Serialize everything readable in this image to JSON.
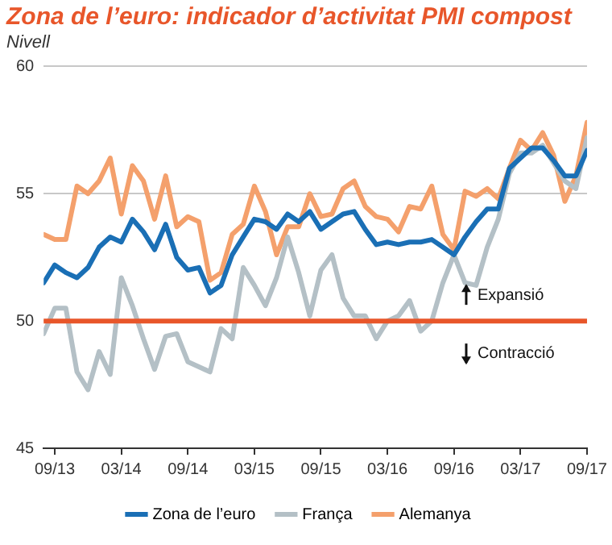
{
  "chart_data": {
    "type": "line",
    "title": "Zona de l’euro: indicador d’activitat PMI compost",
    "subtitle": "Nivell",
    "x": [
      "2013-08",
      "2013-09",
      "2013-10",
      "2013-11",
      "2013-12",
      "2014-01",
      "2014-02",
      "2014-03",
      "2014-04",
      "2014-05",
      "2014-06",
      "2014-07",
      "2014-08",
      "2014-09",
      "2014-10",
      "2014-11",
      "2014-12",
      "2015-01",
      "2015-02",
      "2015-03",
      "2015-04",
      "2015-05",
      "2015-06",
      "2015-07",
      "2015-08",
      "2015-09",
      "2015-10",
      "2015-11",
      "2015-12",
      "2016-01",
      "2016-02",
      "2016-03",
      "2016-04",
      "2016-05",
      "2016-06",
      "2016-07",
      "2016-08",
      "2016-09",
      "2016-10",
      "2016-11",
      "2016-12",
      "2017-01",
      "2017-02",
      "2017-03",
      "2017-04",
      "2017-05",
      "2017-06",
      "2017-07",
      "2017-08",
      "2017-09"
    ],
    "series": [
      {
        "name": "Zona de l’euro",
        "color": "#1a6fb5",
        "values": [
          51.5,
          52.2,
          51.9,
          51.7,
          52.1,
          52.9,
          53.3,
          53.1,
          54.0,
          53.5,
          52.8,
          53.8,
          52.5,
          52.0,
          52.1,
          51.1,
          51.4,
          52.6,
          53.3,
          54.0,
          53.9,
          53.6,
          54.2,
          53.9,
          54.3,
          53.6,
          53.9,
          54.2,
          54.3,
          53.6,
          53.0,
          53.1,
          53.0,
          53.1,
          53.1,
          53.2,
          52.9,
          52.6,
          53.3,
          53.9,
          54.4,
          54.4,
          56.0,
          56.4,
          56.8,
          56.8,
          56.3,
          55.7,
          55.7,
          56.7
        ]
      },
      {
        "name": "França",
        "color": "#b4c0c6",
        "values": [
          49.5,
          50.5,
          50.5,
          48.0,
          47.3,
          48.8,
          47.9,
          51.7,
          50.6,
          49.3,
          48.1,
          49.4,
          49.5,
          48.4,
          48.2,
          48.0,
          49.7,
          49.3,
          52.1,
          51.4,
          50.6,
          51.7,
          53.3,
          51.9,
          50.2,
          52.0,
          52.6,
          50.9,
          50.2,
          50.2,
          49.3,
          50.0,
          50.2,
          50.8,
          49.6,
          50.0,
          51.5,
          52.6,
          51.5,
          51.4,
          52.9,
          54.0,
          55.8,
          56.6,
          56.6,
          56.9,
          56.2,
          55.5,
          55.2,
          57.2
        ]
      },
      {
        "name": "Alemanya",
        "color": "#f4a06c",
        "values": [
          53.4,
          53.2,
          53.2,
          55.3,
          55.0,
          55.5,
          56.4,
          54.2,
          56.1,
          55.5,
          54.0,
          55.7,
          53.7,
          54.1,
          53.9,
          51.6,
          51.9,
          53.4,
          53.8,
          55.3,
          54.3,
          52.6,
          53.7,
          53.7,
          55.0,
          54.1,
          54.2,
          55.2,
          55.5,
          54.5,
          54.1,
          54.0,
          53.5,
          54.5,
          54.4,
          55.3,
          53.4,
          52.8,
          55.1,
          54.9,
          55.2,
          54.8,
          56.0,
          57.1,
          56.7,
          57.4,
          56.5,
          54.7,
          55.7,
          57.8
        ]
      }
    ],
    "xlim": [
      "2013-08",
      "2017-09"
    ],
    "xticks": [
      {
        "value": "2013-09",
        "label": "09/13"
      },
      {
        "value": "2014-03",
        "label": "03/14"
      },
      {
        "value": "2014-09",
        "label": "09/14"
      },
      {
        "value": "2015-03",
        "label": "03/15"
      },
      {
        "value": "2015-09",
        "label": "09/15"
      },
      {
        "value": "2016-03",
        "label": "03/16"
      },
      {
        "value": "2016-09",
        "label": "09/16"
      },
      {
        "value": "2017-03",
        "label": "03/17"
      },
      {
        "value": "2017-09",
        "label": "09/17"
      }
    ],
    "ylim": [
      45,
      60
    ],
    "yticks": [
      45,
      50,
      55,
      60
    ],
    "ref_lines": [
      {
        "axis": "y",
        "value": 50,
        "color": "#e8562a"
      }
    ],
    "annotations": [
      "Expansió",
      "Contracció"
    ],
    "grid": "y",
    "legend": "bottom",
    "marker": "none",
    "line_style": "solid"
  }
}
